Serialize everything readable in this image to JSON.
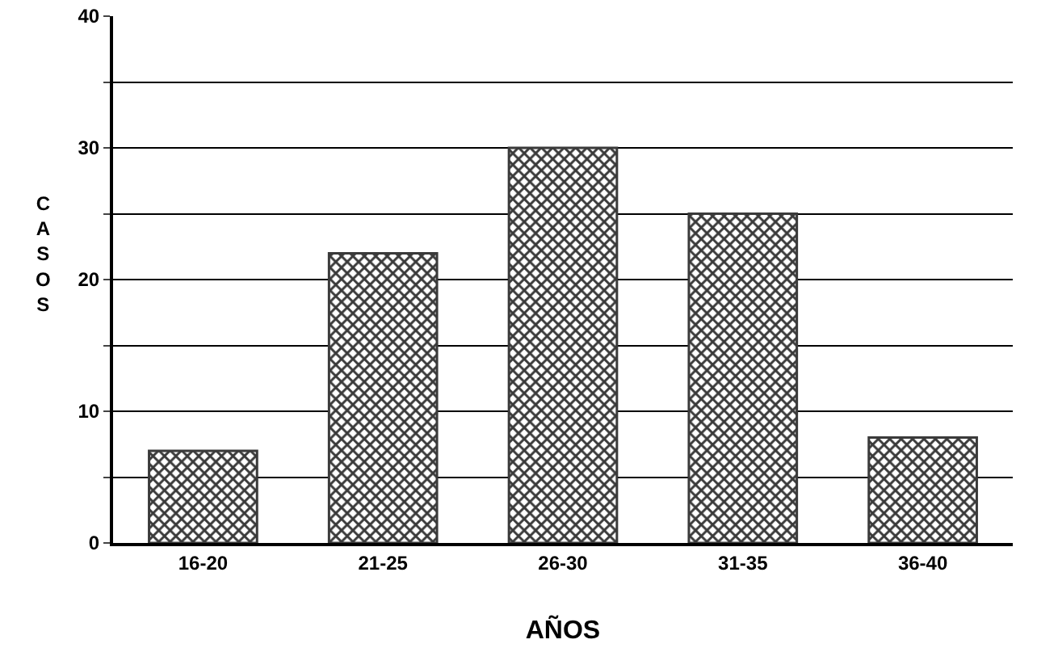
{
  "chart_data": {
    "type": "bar",
    "xlabel": "AÑOS",
    "ylabel": "CASOS",
    "categories": [
      "16-20",
      "21-25",
      "26-30",
      "31-35",
      "36-40"
    ],
    "values": [
      7,
      22,
      30,
      25,
      8
    ],
    "color": "#3a3a3a",
    "ylim": [
      0,
      40
    ],
    "yticks": [
      0,
      {
        "value": 5,
        "label": null
      },
      10,
      {
        "value": 15,
        "label": null
      },
      20,
      {
        "value": 25,
        "label": null
      },
      30,
      {
        "value": 35,
        "label": null
      },
      40
    ],
    "grid": "y"
  }
}
